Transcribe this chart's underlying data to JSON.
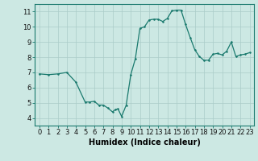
{
  "x": [
    0,
    1,
    2,
    3,
    4,
    5,
    5.5,
    6,
    6.5,
    7,
    7.5,
    8,
    8.3,
    8.6,
    9,
    9.5,
    10,
    10.5,
    11,
    11.5,
    12,
    12.5,
    13,
    13.5,
    14,
    14.5,
    15,
    15.5,
    16,
    16.5,
    17,
    17.5,
    18,
    18.5,
    19,
    19.5,
    20,
    20.5,
    21,
    21.5,
    22,
    22.5,
    23
  ],
  "y": [
    6.9,
    6.85,
    6.9,
    7.0,
    6.35,
    5.05,
    5.05,
    5.1,
    4.85,
    4.85,
    4.65,
    4.4,
    4.55,
    4.6,
    4.1,
    4.85,
    6.85,
    7.9,
    9.9,
    10.0,
    10.45,
    10.5,
    10.5,
    10.35,
    10.55,
    11.05,
    11.1,
    11.1,
    10.15,
    9.3,
    8.5,
    8.05,
    7.8,
    7.8,
    8.2,
    8.25,
    8.15,
    8.4,
    9.0,
    8.05,
    8.15,
    8.2,
    8.3
  ],
  "line_color": "#1a7a6e",
  "marker_color": "#1a7a6e",
  "bg_color": "#cce8e3",
  "grid_color": "#aaccc8",
  "xlabel": "Humidex (Indice chaleur)",
  "xlim": [
    -0.5,
    23.5
  ],
  "ylim": [
    3.5,
    11.5
  ],
  "yticks": [
    4,
    5,
    6,
    7,
    8,
    9,
    10,
    11
  ],
  "xticks": [
    0,
    1,
    2,
    3,
    4,
    5,
    6,
    7,
    8,
    9,
    10,
    11,
    12,
    13,
    14,
    15,
    16,
    17,
    18,
    19,
    20,
    21,
    22,
    23
  ],
  "tick_fontsize": 6,
  "xlabel_fontsize": 7
}
